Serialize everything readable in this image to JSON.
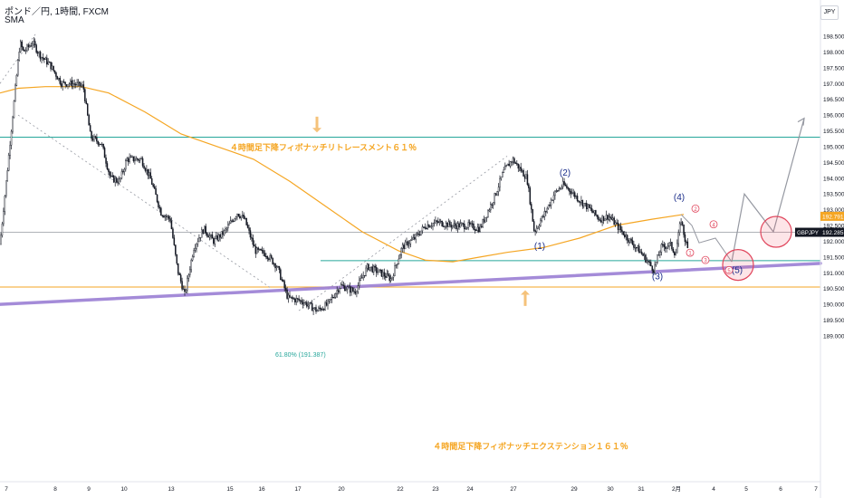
{
  "header": {
    "title": "ポンド／円, 1時間, FXCM",
    "indicator": "SMA"
  },
  "currency_button": "JPY",
  "annotations": {
    "retracement": "４時間足下降フィボナッチリトレースメント６１％",
    "extension": "４時間足下降フィボナッチエクステンション１６１％",
    "fib_label": "61.80% (191.387)"
  },
  "price_tags": [
    {
      "label": "",
      "value": "192.791",
      "color": "#f5a623"
    },
    {
      "label": "GBPJPY",
      "value": "192.285",
      "color": "#131722"
    }
  ],
  "colors": {
    "sma": "#f5a623",
    "teal": "#26a69a",
    "orange_line": "#f5a623",
    "trend": "#9b7fd4",
    "wave": "#1a2d8a",
    "sub": "#e0445b",
    "candle": "#131722",
    "path": "#9598a1"
  },
  "chart_data": {
    "type": "candlestick",
    "ylim": [
      188.9,
      198.78
    ],
    "y_ticks": [
      "198.500",
      "198.000",
      "197.500",
      "197.000",
      "196.500",
      "196.000",
      "195.500",
      "195.000",
      "194.500",
      "194.000",
      "193.500",
      "193.000",
      "192.500",
      "192.000",
      "191.500",
      "191.000",
      "190.500",
      "190.000",
      "189.500",
      "189.000"
    ],
    "x_ticks": [
      "7",
      "8",
      "9",
      "10",
      "13",
      "15",
      "16",
      "17",
      "20",
      "22",
      "23",
      "24",
      "27",
      "29",
      "30",
      "31",
      "2月",
      "4",
      "5",
      "6",
      "7"
    ],
    "price_path": [
      [
        0,
        191.9
      ],
      [
        22,
        198.3
      ],
      [
        26,
        198.0
      ],
      [
        36,
        198.3
      ],
      [
        44,
        197.9
      ],
      [
        55,
        197.6
      ],
      [
        68,
        197.0
      ],
      [
        80,
        197.0
      ],
      [
        92,
        196.9
      ],
      [
        100,
        195.3
      ],
      [
        112,
        195.1
      ],
      [
        122,
        194.0
      ],
      [
        132,
        193.9
      ],
      [
        140,
        194.6
      ],
      [
        156,
        194.6
      ],
      [
        166,
        194.0
      ],
      [
        178,
        192.9
      ],
      [
        188,
        192.7
      ],
      [
        196,
        191.1
      ],
      [
        204,
        190.3
      ],
      [
        214,
        191.8
      ],
      [
        225,
        192.4
      ],
      [
        236,
        192.0
      ],
      [
        248,
        192.3
      ],
      [
        262,
        192.9
      ],
      [
        270,
        192.7
      ],
      [
        282,
        191.7
      ],
      [
        294,
        191.6
      ],
      [
        306,
        191.2
      ],
      [
        318,
        190.2
      ],
      [
        334,
        190.1
      ],
      [
        350,
        189.8
      ],
      [
        362,
        190.0
      ],
      [
        376,
        190.6
      ],
      [
        392,
        190.4
      ],
      [
        406,
        191.2
      ],
      [
        420,
        191.0
      ],
      [
        432,
        190.8
      ],
      [
        444,
        191.8
      ],
      [
        458,
        192.1
      ],
      [
        470,
        192.5
      ],
      [
        484,
        192.6
      ],
      [
        500,
        192.5
      ],
      [
        516,
        192.5
      ],
      [
        530,
        192.4
      ],
      [
        546,
        193.4
      ],
      [
        556,
        194.2
      ],
      [
        566,
        194.6
      ],
      [
        574,
        194.3
      ],
      [
        582,
        194.0
      ],
      [
        590,
        192.3
      ],
      [
        600,
        192.8
      ],
      [
        612,
        193.5
      ],
      [
        622,
        193.8
      ],
      [
        630,
        193.6
      ],
      [
        640,
        193.3
      ],
      [
        652,
        193.0
      ],
      [
        662,
        192.7
      ],
      [
        672,
        192.8
      ],
      [
        684,
        192.4
      ],
      [
        696,
        192.0
      ],
      [
        706,
        191.7
      ],
      [
        714,
        191.4
      ],
      [
        722,
        191.1
      ],
      [
        730,
        191.8
      ],
      [
        740,
        191.9
      ],
      [
        746,
        191.6
      ],
      [
        752,
        192.7
      ],
      [
        756,
        192.1
      ],
      [
        760,
        191.7
      ]
    ],
    "sma_path": [
      [
        0,
        196.7
      ],
      [
        20,
        196.85
      ],
      [
        50,
        196.9
      ],
      [
        90,
        196.9
      ],
      [
        120,
        196.7
      ],
      [
        160,
        196.1
      ],
      [
        200,
        195.4
      ],
      [
        240,
        195.0
      ],
      [
        280,
        194.6
      ],
      [
        320,
        193.9
      ],
      [
        360,
        193.1
      ],
      [
        400,
        192.3
      ],
      [
        440,
        191.7
      ],
      [
        470,
        191.4
      ],
      [
        500,
        191.35
      ],
      [
        530,
        191.5
      ],
      [
        560,
        191.65
      ],
      [
        600,
        191.8
      ],
      [
        640,
        192.1
      ],
      [
        680,
        192.5
      ],
      [
        720,
        192.7
      ],
      [
        755,
        192.85
      ]
    ],
    "h_lines": [
      {
        "value": 195.3,
        "color": "#26a69a",
        "width": 1
      },
      {
        "value": 192.285,
        "color": "#9598a1",
        "width": 0.8
      },
      {
        "value": 191.387,
        "color": "#26a69a",
        "width": 1,
        "x_from": 354
      },
      {
        "value": 190.55,
        "color": "#f5a623",
        "width": 1
      }
    ],
    "trend_line": [
      [
        0,
        190.0
      ],
      [
        906,
        191.3
      ]
    ],
    "dotted_lines": [
      [
        [
          0,
          197.0
        ],
        [
          40,
          198.6
        ]
      ],
      [
        [
          20,
          196.0
        ],
        [
          300,
          190.5
        ]
      ],
      [
        [
          330,
          189.8
        ],
        [
          560,
          194.7
        ]
      ]
    ],
    "projection": {
      "down_path": [
        [
          752,
          192.85
        ],
        [
          764,
          192.5
        ],
        [
          772,
          191.95
        ],
        [
          790,
          192.1
        ],
        [
          808,
          191.35
        ]
      ],
      "up_path": [
        [
          808,
          191.35
        ],
        [
          822,
          193.5
        ],
        [
          854,
          192.3
        ],
        [
          888,
          195.9
        ]
      ],
      "circles": [
        {
          "x": 815,
          "y": 191.25,
          "r": 17
        },
        {
          "x": 857,
          "y": 192.3,
          "r": 17
        }
      ]
    },
    "wave_labels": [
      {
        "text": "(1)",
        "x": 596,
        "y": 191.75
      },
      {
        "text": "(2)",
        "x": 624,
        "y": 194.08
      },
      {
        "text": "(3)",
        "x": 726,
        "y": 190.8
      },
      {
        "text": "(4)",
        "x": 750,
        "y": 193.3
      },
      {
        "text": "(5)",
        "x": 814,
        "y": 191.0
      }
    ],
    "sub_labels": [
      {
        "text": "1",
        "x": 762,
        "y": 191.55
      },
      {
        "text": "2",
        "x": 768,
        "y": 192.95
      },
      {
        "text": "3",
        "x": 779,
        "y": 191.32
      },
      {
        "text": "4",
        "x": 788,
        "y": 192.45
      },
      {
        "text": "5",
        "x": 805,
        "y": 191.0
      }
    ],
    "fib_arrows": [
      {
        "x": 350,
        "y1": 195.95,
        "y2": 195.45
      },
      {
        "x": 580,
        "y1": 189.95,
        "y2": 190.45
      }
    ]
  }
}
